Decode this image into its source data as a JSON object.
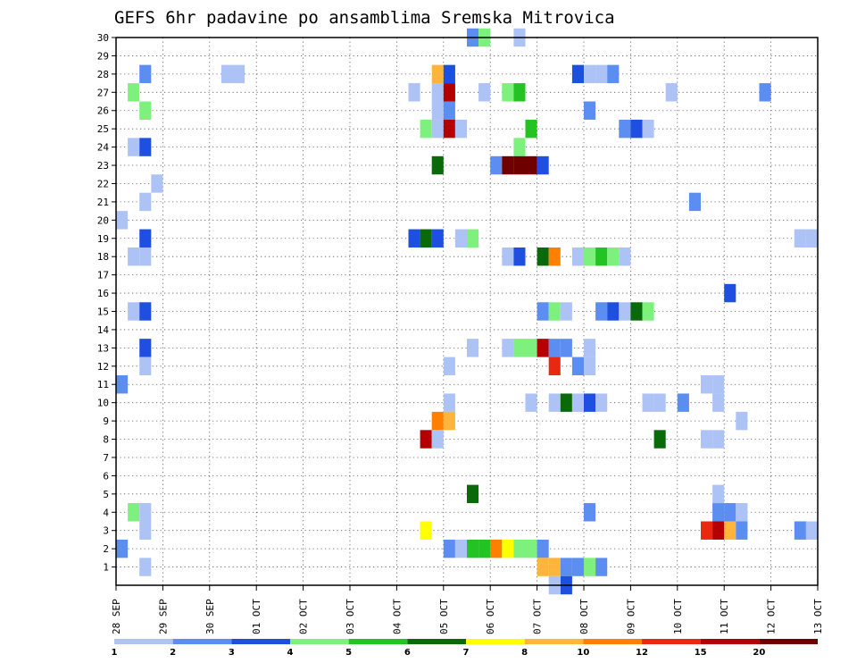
{
  "chart_data": {
    "type": "heatmap",
    "title": "GEFS 6hr padavine po ansamblima Sremska Mitrovica",
    "xlabel": "",
    "ylabel": "",
    "x_ticks": [
      "28 SEP",
      "29 SEP",
      "30 SEP",
      "01 OCT",
      "02 OCT",
      "03 OCT",
      "04 OCT",
      "05 OCT",
      "06 OCT",
      "07 OCT",
      "08 OCT",
      "09 OCT",
      "10 OCT",
      "11 OCT",
      "12 OCT",
      "13 OCT"
    ],
    "y_ticks": [
      "1",
      "2",
      "3",
      "4",
      "5",
      "6",
      "7",
      "8",
      "9",
      "10",
      "11",
      "12",
      "13",
      "14",
      "15",
      "16",
      "17",
      "18",
      "19",
      "20",
      "21",
      "22",
      "23",
      "24",
      "25",
      "26",
      "27",
      "28",
      "29",
      "30"
    ],
    "xlim_days": [
      0,
      15
    ],
    "ylim_members": [
      0,
      30
    ],
    "grid": true,
    "color_levels": [
      {
        "label": "1",
        "color": "#aec3f5"
      },
      {
        "label": "2",
        "color": "#5b8ef0"
      },
      {
        "label": "3",
        "color": "#1f4fe0"
      },
      {
        "label": "4",
        "color": "#7ef07e"
      },
      {
        "label": "5",
        "color": "#22c322"
      },
      {
        "label": "6",
        "color": "#0a6a0a"
      },
      {
        "label": "7",
        "color": "#ffff00"
      },
      {
        "label": "8",
        "color": "#ffb43c"
      },
      {
        "label": "10",
        "color": "#ff7f00"
      },
      {
        "label": "12",
        "color": "#e82810"
      },
      {
        "label": "15",
        "color": "#b40000"
      },
      {
        "label": "20",
        "color": "#6e0000"
      }
    ],
    "legend_position": "bottom",
    "cells_note": "each cell = [day offset from 28 SEP (0.25 = 6h), ensemble member, color level index 0-11]",
    "cells": [
      [
        0.5,
        28,
        1
      ],
      [
        2.25,
        28,
        0
      ],
      [
        2.5,
        28,
        0
      ],
      [
        6.75,
        28,
        7
      ],
      [
        7,
        28,
        2
      ],
      [
        9.75,
        28,
        2
      ],
      [
        10,
        28,
        0
      ],
      [
        10.25,
        28,
        0
      ],
      [
        10.5,
        28,
        1
      ],
      [
        0.25,
        27,
        3
      ],
      [
        6.25,
        27,
        0
      ],
      [
        6.75,
        27,
        0
      ],
      [
        7,
        27,
        10
      ],
      [
        7.75,
        27,
        0
      ],
      [
        8.25,
        27,
        3
      ],
      [
        8.5,
        27,
        4
      ],
      [
        11.75,
        27,
        0
      ],
      [
        13.75,
        27,
        1
      ],
      [
        0.5,
        26,
        3
      ],
      [
        6.75,
        26,
        0
      ],
      [
        7,
        26,
        1
      ],
      [
        10,
        26,
        1
      ],
      [
        6.5,
        25,
        3
      ],
      [
        6.75,
        25,
        0
      ],
      [
        7,
        25,
        10
      ],
      [
        7.25,
        25,
        0
      ],
      [
        8.75,
        25,
        4
      ],
      [
        10.75,
        25,
        1
      ],
      [
        11,
        25,
        2
      ],
      [
        11.25,
        25,
        0
      ],
      [
        0.25,
        24,
        0
      ],
      [
        0.5,
        24,
        2
      ],
      [
        8.5,
        24,
        3
      ],
      [
        6.75,
        23,
        5
      ],
      [
        8,
        23,
        1
      ],
      [
        8.25,
        23,
        11
      ],
      [
        8.5,
        23,
        11
      ],
      [
        8.75,
        23,
        11
      ],
      [
        9,
        23,
        2
      ],
      [
        0.75,
        22,
        0
      ],
      [
        0.5,
        21,
        0
      ],
      [
        12.25,
        21,
        1
      ],
      [
        0,
        20,
        0
      ],
      [
        0.5,
        19,
        2
      ],
      [
        6.25,
        19,
        2
      ],
      [
        6.5,
        19,
        5
      ],
      [
        6.75,
        19,
        2
      ],
      [
        7.25,
        19,
        0
      ],
      [
        7.5,
        19,
        3
      ],
      [
        14.5,
        19,
        0
      ],
      [
        14.75,
        19,
        0
      ],
      [
        0.25,
        18,
        0
      ],
      [
        0.5,
        18,
        0
      ],
      [
        8.25,
        18,
        0
      ],
      [
        8.5,
        18,
        2
      ],
      [
        9,
        18,
        5
      ],
      [
        9.25,
        18,
        8
      ],
      [
        9.75,
        18,
        0
      ],
      [
        10,
        18,
        3
      ],
      [
        10.25,
        18,
        4
      ],
      [
        10.5,
        18,
        3
      ],
      [
        10.75,
        18,
        0
      ],
      [
        13,
        16,
        2
      ],
      [
        0.25,
        15,
        0
      ],
      [
        0.5,
        15,
        2
      ],
      [
        9,
        15,
        1
      ],
      [
        9.25,
        15,
        3
      ],
      [
        9.5,
        15,
        0
      ],
      [
        10.25,
        15,
        1
      ],
      [
        10.5,
        15,
        2
      ],
      [
        10.75,
        15,
        0
      ],
      [
        11,
        15,
        5
      ],
      [
        11.25,
        15,
        3
      ],
      [
        0.5,
        13,
        2
      ],
      [
        7.5,
        13,
        0
      ],
      [
        8.25,
        13,
        0
      ],
      [
        8.5,
        13,
        3
      ],
      [
        8.75,
        13,
        3
      ],
      [
        9,
        13,
        10
      ],
      [
        9.25,
        13,
        1
      ],
      [
        9.5,
        13,
        1
      ],
      [
        10,
        13,
        0
      ],
      [
        0.5,
        12,
        0
      ],
      [
        7,
        12,
        0
      ],
      [
        9.25,
        12,
        9
      ],
      [
        9.75,
        12,
        1
      ],
      [
        10,
        12,
        0
      ],
      [
        0,
        11,
        1
      ],
      [
        12.5,
        11,
        0
      ],
      [
        12.75,
        11,
        0
      ],
      [
        7,
        10,
        0
      ],
      [
        8.75,
        10,
        0
      ],
      [
        9.25,
        10,
        0
      ],
      [
        9.5,
        10,
        5
      ],
      [
        9.75,
        10,
        0
      ],
      [
        10,
        10,
        2
      ],
      [
        10.25,
        10,
        0
      ],
      [
        11.25,
        10,
        0
      ],
      [
        11.5,
        10,
        0
      ],
      [
        12,
        10,
        1
      ],
      [
        12.75,
        10,
        0
      ],
      [
        6.75,
        9,
        8
      ],
      [
        7,
        9,
        7
      ],
      [
        13.25,
        9,
        0
      ],
      [
        6.5,
        8,
        10
      ],
      [
        6.75,
        8,
        0
      ],
      [
        11.5,
        8,
        5
      ],
      [
        12.5,
        8,
        0
      ],
      [
        12.75,
        8,
        0
      ],
      [
        7.5,
        5,
        5
      ],
      [
        12.75,
        5,
        0
      ],
      [
        0.25,
        4,
        3
      ],
      [
        0.5,
        4,
        0
      ],
      [
        10,
        4,
        1
      ],
      [
        12.75,
        4,
        1
      ],
      [
        13,
        4,
        1
      ],
      [
        13.25,
        4,
        0
      ],
      [
        0.5,
        3,
        0
      ],
      [
        6.5,
        3,
        6
      ],
      [
        12.5,
        3,
        9
      ],
      [
        12.75,
        3,
        10
      ],
      [
        13,
        3,
        7
      ],
      [
        13.25,
        3,
        1
      ],
      [
        14.5,
        3,
        1
      ],
      [
        14.75,
        3,
        0
      ],
      [
        0,
        2,
        1
      ],
      [
        7,
        2,
        1
      ],
      [
        7.25,
        2,
        0
      ],
      [
        7.5,
        2,
        4
      ],
      [
        7.75,
        2,
        4
      ],
      [
        8,
        2,
        8
      ],
      [
        8.25,
        2,
        6
      ],
      [
        8.5,
        2,
        3
      ],
      [
        8.75,
        2,
        3
      ],
      [
        9,
        2,
        1
      ],
      [
        0.5,
        1,
        0
      ],
      [
        9,
        1,
        7
      ],
      [
        9.25,
        1,
        7
      ],
      [
        9.5,
        1,
        1
      ],
      [
        9.75,
        1,
        1
      ],
      [
        10,
        1,
        3
      ],
      [
        10.25,
        1,
        1
      ],
      [
        9.5,
        0,
        2
      ],
      [
        9.25,
        0,
        0
      ],
      [
        7.5,
        30,
        1
      ],
      [
        7.75,
        30,
        3
      ],
      [
        8.5,
        30,
        0
      ]
    ]
  }
}
